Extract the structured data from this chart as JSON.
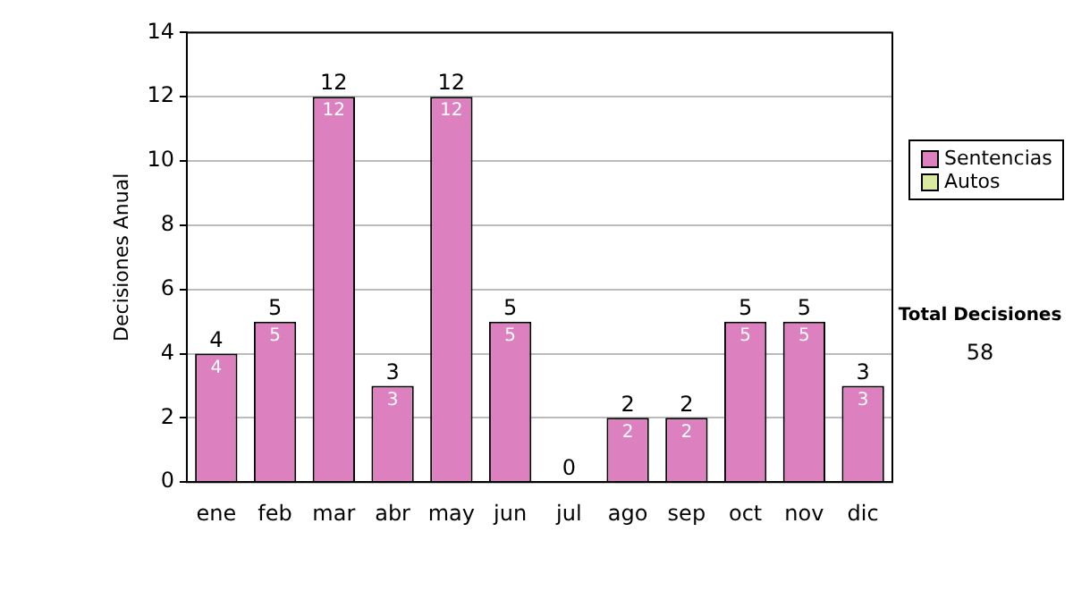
{
  "chart_data": {
    "type": "bar",
    "ylabel": "Decisiones Anual",
    "categories": [
      "ene",
      "feb",
      "mar",
      "abr",
      "may",
      "jun",
      "jul",
      "ago",
      "sep",
      "oct",
      "nov",
      "dic"
    ],
    "series": [
      {
        "name": "Sentencias",
        "color": "#dd80c0",
        "values": [
          4,
          5,
          12,
          3,
          12,
          5,
          0,
          2,
          2,
          5,
          5,
          3
        ],
        "value_labels": [
          "4",
          "5",
          "12",
          "3",
          "12",
          "5",
          null,
          "2",
          "2",
          "5",
          "5",
          "3"
        ]
      },
      {
        "name": "Autos",
        "color": "#d8eaa0",
        "values": [
          0,
          0,
          0,
          0,
          0,
          0,
          0,
          0,
          0,
          0,
          0,
          0
        ]
      }
    ],
    "stacked": true,
    "totals": [
      "4",
      "5",
      "12",
      "3",
      "12",
      "5",
      "0",
      "2",
      "2",
      "5",
      "5",
      "3"
    ],
    "ylim": [
      0,
      14
    ],
    "yticks": [
      0,
      2,
      4,
      6,
      8,
      10,
      12,
      14
    ],
    "grid": "y",
    "legend": "right",
    "annotations": [
      "Total Decisiones",
      "58"
    ]
  }
}
